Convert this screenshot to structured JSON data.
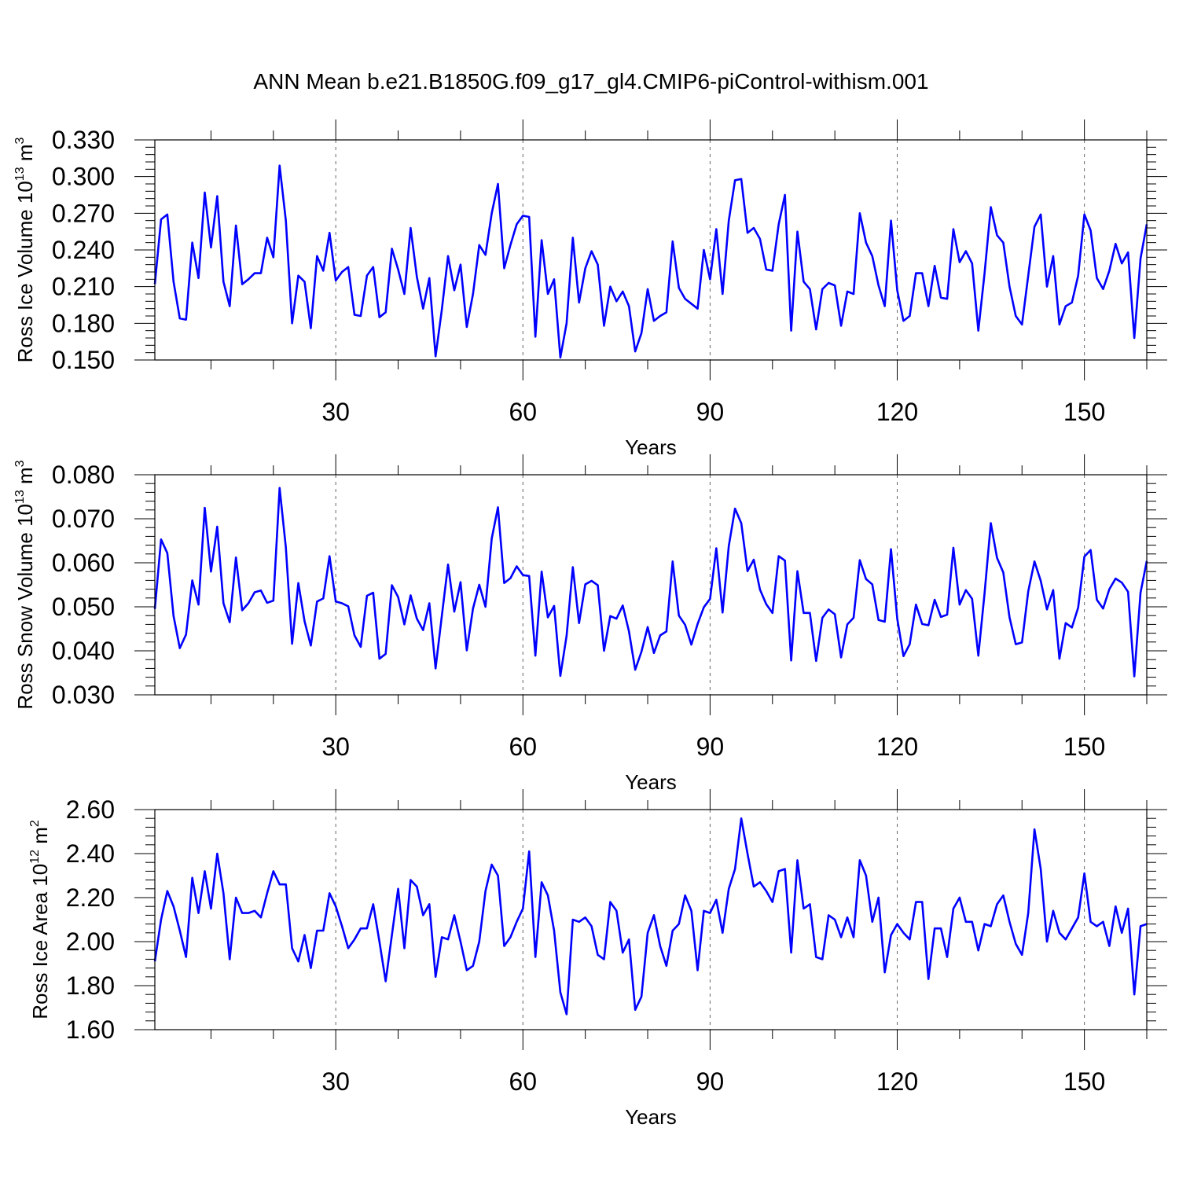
{
  "page_title": "ANN Mean b.e21.B1850G.f09_g17_gl4.CMIP6-piControl-withism.001",
  "line_color": "#0000ff",
  "grid_color": "#000000",
  "chart_data": [
    {
      "type": "line",
      "title": "",
      "xlabel": "Years",
      "ylabel_main": "Ross Ice Volume 10",
      "ylabel_sup": "13",
      "ylabel_unit": " m",
      "ylabel_unit_sup": "3",
      "xlim": [
        1,
        160
      ],
      "ylim": [
        0.15,
        0.33
      ],
      "x_ticks": [
        30,
        60,
        90,
        120,
        150
      ],
      "x_tick_labels": [
        "30",
        "60",
        "90",
        "120",
        "150"
      ],
      "y_ticks": [
        0.15,
        0.18,
        0.21,
        0.24,
        0.27,
        0.3,
        0.33
      ],
      "y_tick_labels": [
        "0.150",
        "0.180",
        "0.210",
        "0.240",
        "0.270",
        "0.300",
        "0.330"
      ],
      "grid": "vertical dashed at major x ticks",
      "x_start": 1,
      "values": [
        0.212,
        0.265,
        0.269,
        0.214,
        0.184,
        0.183,
        0.246,
        0.217,
        0.287,
        0.242,
        0.284,
        0.214,
        0.194,
        0.26,
        0.212,
        0.216,
        0.221,
        0.221,
        0.25,
        0.234,
        0.309,
        0.264,
        0.18,
        0.219,
        0.214,
        0.176,
        0.235,
        0.223,
        0.254,
        0.215,
        0.222,
        0.226,
        0.187,
        0.186,
        0.219,
        0.226,
        0.185,
        0.189,
        0.241,
        0.224,
        0.204,
        0.258,
        0.218,
        0.192,
        0.217,
        0.153,
        0.191,
        0.235,
        0.207,
        0.228,
        0.177,
        0.204,
        0.244,
        0.236,
        0.27,
        0.294,
        0.225,
        0.244,
        0.261,
        0.268,
        0.267,
        0.169,
        0.248,
        0.204,
        0.216,
        0.152,
        0.18,
        0.25,
        0.197,
        0.225,
        0.239,
        0.228,
        0.178,
        0.21,
        0.198,
        0.206,
        0.194,
        0.157,
        0.172,
        0.208,
        0.182,
        0.186,
        0.189,
        0.247,
        0.209,
        0.2,
        0.196,
        0.192,
        0.24,
        0.216,
        0.257,
        0.204,
        0.264,
        0.297,
        0.298,
        0.254,
        0.258,
        0.249,
        0.224,
        0.223,
        0.261,
        0.285,
        0.174,
        0.255,
        0.214,
        0.208,
        0.175,
        0.208,
        0.213,
        0.211,
        0.178,
        0.206,
        0.204,
        0.27,
        0.246,
        0.235,
        0.211,
        0.194,
        0.264,
        0.207,
        0.182,
        0.186,
        0.221,
        0.221,
        0.194,
        0.227,
        0.201,
        0.2,
        0.257,
        0.23,
        0.239,
        0.229,
        0.174,
        0.221,
        0.275,
        0.252,
        0.246,
        0.21,
        0.186,
        0.179,
        0.219,
        0.259,
        0.269,
        0.21,
        0.235,
        0.179,
        0.194,
        0.197,
        0.219,
        0.269,
        0.256,
        0.217,
        0.208,
        0.223,
        0.245,
        0.229,
        0.238,
        0.168,
        0.233,
        0.261
      ]
    },
    {
      "type": "line",
      "title": "",
      "xlabel": "Years",
      "ylabel_main": "Ross Snow Volume 10",
      "ylabel_sup": "13",
      "ylabel_unit": " m",
      "ylabel_unit_sup": "3",
      "xlim": [
        1,
        160
      ],
      "ylim": [
        0.03,
        0.08
      ],
      "x_ticks": [
        30,
        60,
        90,
        120,
        150
      ],
      "x_tick_labels": [
        "30",
        "60",
        "90",
        "120",
        "150"
      ],
      "y_ticks": [
        0.03,
        0.04,
        0.05,
        0.06,
        0.07,
        0.08
      ],
      "y_tick_labels": [
        "0.030",
        "0.040",
        "0.050",
        "0.060",
        "0.070",
        "0.080"
      ],
      "grid": "vertical dashed at major x ticks",
      "x_start": 1,
      "values": [
        0.0495,
        0.0653,
        0.0622,
        0.0479,
        0.0406,
        0.0437,
        0.056,
        0.0505,
        0.0725,
        0.058,
        0.0682,
        0.0508,
        0.0465,
        0.0612,
        0.0492,
        0.0508,
        0.0533,
        0.0537,
        0.0509,
        0.0514,
        0.077,
        0.0635,
        0.0416,
        0.0554,
        0.0467,
        0.0412,
        0.0512,
        0.0519,
        0.0615,
        0.0512,
        0.0508,
        0.0501,
        0.0435,
        0.0409,
        0.0525,
        0.0532,
        0.0382,
        0.0393,
        0.0549,
        0.0522,
        0.046,
        0.0526,
        0.0473,
        0.0447,
        0.0508,
        0.036,
        0.0479,
        0.0596,
        0.0489,
        0.0556,
        0.0401,
        0.0496,
        0.055,
        0.05,
        0.0655,
        0.0726,
        0.0554,
        0.0565,
        0.0592,
        0.0572,
        0.057,
        0.0389,
        0.058,
        0.0476,
        0.0502,
        0.0343,
        0.0434,
        0.059,
        0.0463,
        0.0551,
        0.0559,
        0.0549,
        0.04,
        0.0479,
        0.0473,
        0.0503,
        0.0444,
        0.0357,
        0.0398,
        0.0454,
        0.0395,
        0.0435,
        0.0444,
        0.0603,
        0.048,
        0.0459,
        0.0414,
        0.0461,
        0.0499,
        0.0518,
        0.0633,
        0.0487,
        0.0638,
        0.0723,
        0.069,
        0.0581,
        0.0607,
        0.0539,
        0.0506,
        0.0486,
        0.0615,
        0.0605,
        0.0378,
        0.0581,
        0.0486,
        0.0486,
        0.0377,
        0.0475,
        0.0494,
        0.0483,
        0.0385,
        0.046,
        0.0475,
        0.0606,
        0.0563,
        0.0551,
        0.047,
        0.0466,
        0.0631,
        0.0473,
        0.0388,
        0.0415,
        0.0505,
        0.0461,
        0.0458,
        0.0516,
        0.0477,
        0.0482,
        0.0634,
        0.0505,
        0.0538,
        0.0518,
        0.0389,
        0.0531,
        0.069,
        0.0611,
        0.0578,
        0.0476,
        0.0415,
        0.0419,
        0.0535,
        0.0603,
        0.0559,
        0.0494,
        0.0538,
        0.0382,
        0.0463,
        0.0453,
        0.0498,
        0.0614,
        0.0629,
        0.0516,
        0.0496,
        0.054,
        0.0564,
        0.0555,
        0.0534,
        0.0342,
        0.0532,
        0.0604
      ]
    },
    {
      "type": "line",
      "title": "",
      "xlabel": "Years",
      "ylabel_main": "Ross Ice Area 10",
      "ylabel_sup": "12",
      "ylabel_unit": " m",
      "ylabel_unit_sup": "2",
      "xlim": [
        1,
        160
      ],
      "ylim": [
        1.6,
        2.6
      ],
      "x_ticks": [
        30,
        60,
        90,
        120,
        150
      ],
      "x_tick_labels": [
        "30",
        "60",
        "90",
        "120",
        "150"
      ],
      "y_ticks": [
        1.6,
        1.8,
        2.0,
        2.2,
        2.4,
        2.6
      ],
      "y_tick_labels": [
        "1.60",
        "1.80",
        "2.00",
        "2.20",
        "2.40",
        "2.60"
      ],
      "grid": "vertical dashed at major x ticks",
      "x_start": 1,
      "values": [
        1.91,
        2.1,
        2.23,
        2.16,
        2.05,
        1.93,
        2.29,
        2.13,
        2.32,
        2.15,
        2.4,
        2.22,
        1.92,
        2.2,
        2.13,
        2.13,
        2.14,
        2.11,
        2.22,
        2.32,
        2.26,
        2.26,
        1.97,
        1.91,
        2.03,
        1.88,
        2.05,
        2.05,
        2.22,
        2.16,
        2.07,
        1.97,
        2.01,
        2.06,
        2.06,
        2.17,
        2.0,
        1.82,
        2.03,
        2.24,
        1.97,
        2.28,
        2.25,
        2.12,
        2.17,
        1.84,
        2.02,
        2.01,
        2.12,
        2.0,
        1.87,
        1.89,
        2.0,
        2.23,
        2.35,
        2.3,
        1.98,
        2.02,
        2.09,
        2.15,
        2.41,
        1.93,
        2.27,
        2.21,
        2.05,
        1.77,
        1.67,
        2.1,
        2.09,
        2.11,
        2.07,
        1.94,
        1.92,
        2.18,
        2.14,
        1.95,
        2.01,
        1.69,
        1.75,
        2.04,
        2.12,
        1.98,
        1.89,
        2.05,
        2.08,
        2.21,
        2.14,
        1.87,
        2.14,
        2.13,
        2.19,
        2.04,
        2.24,
        2.33,
        2.56,
        2.4,
        2.25,
        2.27,
        2.23,
        2.18,
        2.32,
        2.33,
        1.95,
        2.37,
        2.15,
        2.17,
        1.93,
        1.92,
        2.12,
        2.1,
        2.02,
        2.11,
        2.02,
        2.37,
        2.3,
        2.09,
        2.2,
        1.86,
        2.03,
        2.08,
        2.04,
        2.01,
        2.18,
        2.18,
        1.83,
        2.06,
        2.06,
        1.93,
        2.15,
        2.2,
        2.09,
        2.09,
        1.96,
        2.08,
        2.07,
        2.17,
        2.21,
        2.09,
        1.99,
        1.94,
        2.13,
        2.51,
        2.33,
        2.0,
        2.14,
        2.04,
        2.01,
        2.06,
        2.11,
        2.31,
        2.09,
        2.07,
        2.09,
        1.98,
        2.16,
        2.04,
        2.15,
        1.76,
        2.07,
        2.08
      ]
    }
  ]
}
